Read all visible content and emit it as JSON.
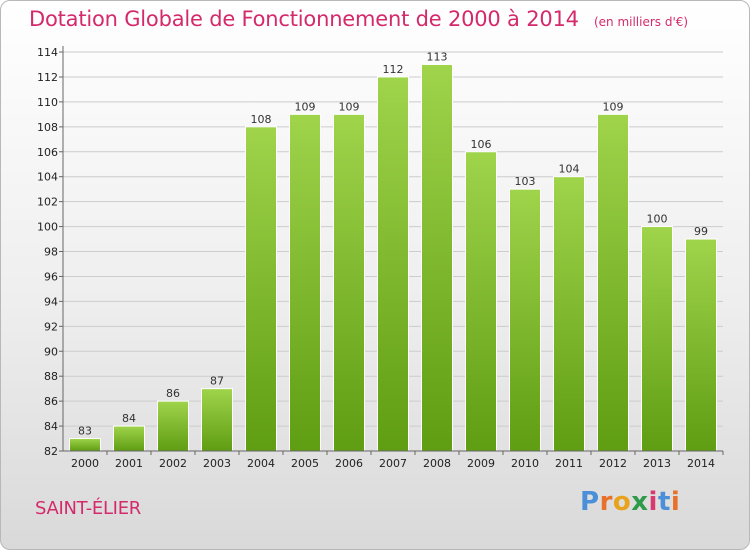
{
  "header": {
    "title": "Dotation Globale de Fonctionnement de 2000 à 2014",
    "unit": "(en milliers d'€)"
  },
  "footer": {
    "town": "SAINT-ÉLIER",
    "logo": "Proxiti"
  },
  "colors": {
    "title": "#d42a6b",
    "bar_light": "#9fd44b",
    "bar_dark": "#5f9d12",
    "grid": "#cccccc",
    "logo_letters": [
      "#4a8fd8",
      "#e8702a",
      "#e8a21c",
      "#2f9a4a",
      "#d83a70",
      "#4a8fd8",
      "#e8702a"
    ]
  },
  "chart_data": {
    "type": "bar",
    "title": "Dotation Globale de Fonctionnement de 2000 à 2014",
    "subtitle": "(en milliers d'€)",
    "xlabel": "",
    "ylabel": "",
    "categories": [
      "2000",
      "2001",
      "2002",
      "2003",
      "2004",
      "2005",
      "2006",
      "2007",
      "2008",
      "2009",
      "2010",
      "2011",
      "2012",
      "2013",
      "2014"
    ],
    "values": [
      83,
      84,
      86,
      87,
      108,
      109,
      109,
      112,
      113,
      106,
      103,
      104,
      109,
      100,
      99
    ],
    "ylim": [
      82,
      114
    ],
    "yticks": [
      82,
      84,
      86,
      88,
      90,
      92,
      94,
      96,
      98,
      100,
      102,
      104,
      106,
      108,
      110,
      112,
      114
    ],
    "grid": true,
    "data_labels": true
  }
}
